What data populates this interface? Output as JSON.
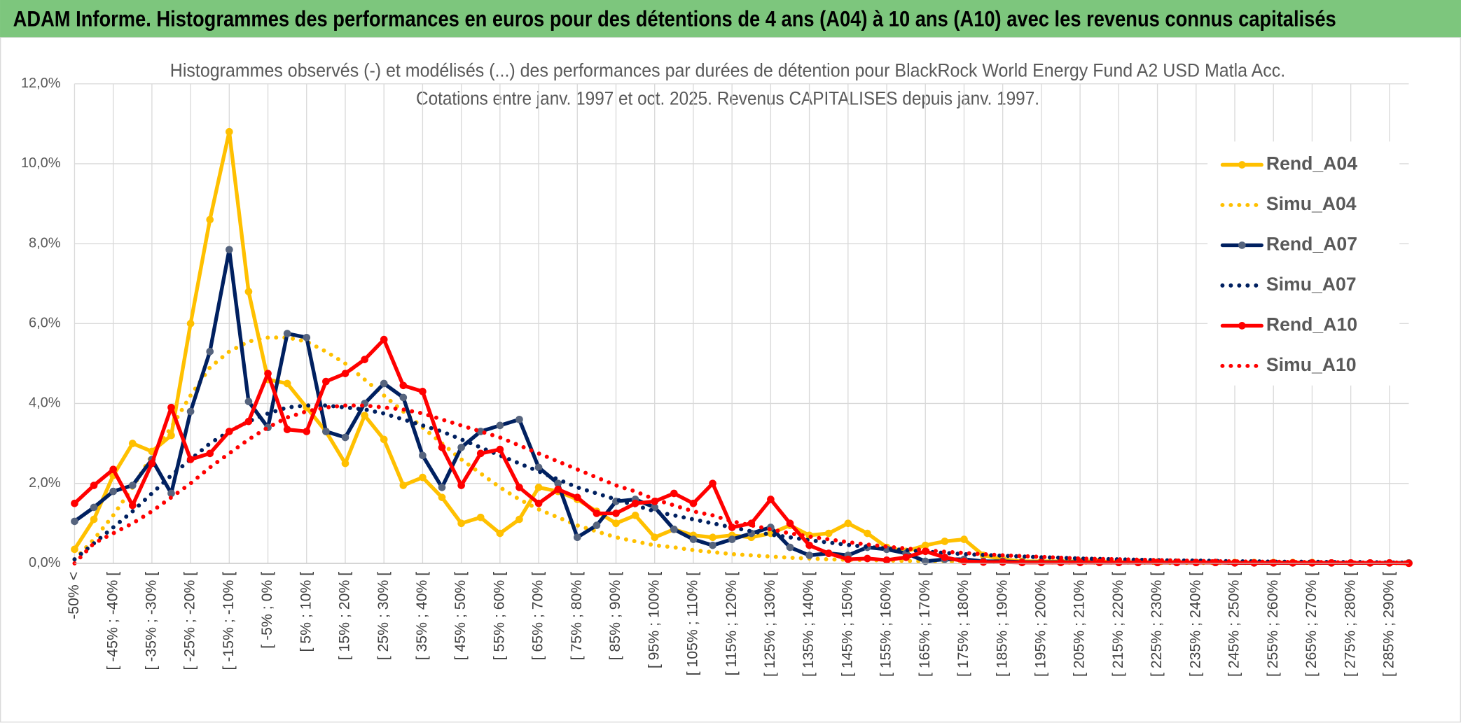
{
  "header": {
    "title": "ADAM Informe. Histogrammes des performances en euros pour des détentions de 4 ans (A04) à 10 ans (A10) avec les revenus connus capitalisés"
  },
  "chart_data": {
    "type": "line",
    "title": "Histogrammes observés (-) et modélisés (...) des performances par durées de détention pour BlackRock World Energy Fund A2 USD Matla Acc.",
    "subtitle": "Cotations entre janv. 1997 et oct. 2025. Revenus CAPITALISES depuis janv. 1997.",
    "categories": [
      "-50% <",
      null,
      "[ -45% ; -40% [",
      null,
      "[ -35% ; -30% [",
      null,
      "[ -25% ; -20% [",
      null,
      "[ -15% ; -10% [",
      null,
      "[ -5% ; 0% [",
      null,
      "[ 5% ; 10% [",
      null,
      "[ 15% ; 20% [",
      null,
      "[ 25% ; 30% [",
      null,
      "[ 35% ; 40% [",
      null,
      "[ 45% ; 50% [",
      null,
      "[ 55% ; 60% [",
      null,
      "[ 65% ; 70% [",
      null,
      "[ 75% ; 80% [",
      null,
      "[ 85% ; 90% [",
      null,
      "[ 95% ; 100% [",
      null,
      "[ 105% ; 110% [",
      null,
      "[ 115% ; 120% [",
      null,
      "[ 125% ; 130% [",
      null,
      "[ 135% ; 140% [",
      null,
      "[ 145% ; 150% [",
      null,
      "[ 155% ; 160% [",
      null,
      "[ 165% ; 170% [",
      null,
      "[ 175% ; 180% [",
      null,
      "[ 185% ; 190% [",
      null,
      "[ 195% ; 200% [",
      null,
      "[ 205% ; 210% [",
      null,
      "[ 215% ; 220% [",
      null,
      "[ 225% ; 230% [",
      null,
      "[ 235% ; 240% [",
      null,
      "[ 245% ; 250% [",
      null,
      "[ 255% ; 260% [",
      null,
      "[ 265% ; 270% [",
      null,
      "[ 275% ; 280% [",
      null,
      "[ 285% ; 290% [",
      null
    ],
    "ylim": [
      0,
      12
    ],
    "yticks": [
      {
        "value": 0,
        "label": "0,0%"
      },
      {
        "value": 2,
        "label": "2,0%"
      },
      {
        "value": 4,
        "label": "4,0%"
      },
      {
        "value": 6,
        "label": "6,0%"
      },
      {
        "value": 8,
        "label": "8,0%"
      },
      {
        "value": 10,
        "label": "10,0%"
      },
      {
        "value": 12,
        "label": "12,0%"
      }
    ],
    "grid": true,
    "legend": "right",
    "series": [
      {
        "name": "Rend_A04",
        "color": "#ffc000",
        "marker_color": "#ffc000",
        "style": "solid",
        "values": [
          0.35,
          1.1,
          2.2,
          3.0,
          2.8,
          3.2,
          6.0,
          8.6,
          10.8,
          6.8,
          4.6,
          4.5,
          3.9,
          3.3,
          2.5,
          3.7,
          3.1,
          1.95,
          2.15,
          1.65,
          1.0,
          1.15,
          0.75,
          1.1,
          1.9,
          1.8,
          1.6,
          1.3,
          1.0,
          1.2,
          0.65,
          0.85,
          0.7,
          0.65,
          0.7,
          0.65,
          0.75,
          0.95,
          0.7,
          0.75,
          1.0,
          0.75,
          0.4,
          0.3,
          0.45,
          0.55,
          0.6,
          0.2,
          0.1,
          0.05,
          0.05,
          0.05,
          0.05,
          0.05,
          0.03,
          0.03,
          0.03,
          0.03,
          0.02,
          0.02,
          0.02,
          0.02,
          0.02,
          0.02,
          0.02,
          0.01,
          0.01,
          0.01,
          0.01,
          0.01
        ]
      },
      {
        "name": "Simu_A04",
        "color": "#ffc000",
        "style": "dotted",
        "values": [
          0.1,
          0.6,
          1.2,
          1.9,
          2.7,
          3.4,
          4.2,
          4.9,
          5.3,
          5.55,
          5.65,
          5.65,
          5.55,
          5.3,
          5.0,
          4.6,
          4.2,
          3.8,
          3.4,
          3.0,
          2.6,
          2.25,
          1.9,
          1.6,
          1.35,
          1.15,
          0.95,
          0.8,
          0.65,
          0.55,
          0.45,
          0.4,
          0.33,
          0.28,
          0.23,
          0.2,
          0.17,
          0.14,
          0.12,
          0.1,
          0.09,
          0.08,
          0.07,
          0.06,
          0.05,
          0.05,
          0.04,
          0.04,
          0.03,
          0.03,
          0.03,
          0.02,
          0.02,
          0.02,
          0.02,
          0.02,
          0.01,
          0.01,
          0.01,
          0.01,
          0.01,
          0.01,
          0.01,
          0.01,
          0.01,
          0.01,
          0.01,
          0.01,
          0.01,
          0.0
        ]
      },
      {
        "name": "Rend_A07",
        "color": "#002060",
        "marker_color": "#56647e",
        "style": "solid",
        "values": [
          1.05,
          1.4,
          1.8,
          1.95,
          2.6,
          1.75,
          3.8,
          5.3,
          7.85,
          4.05,
          3.4,
          5.75,
          5.65,
          3.3,
          3.15,
          4.0,
          4.5,
          4.15,
          2.7,
          1.9,
          2.9,
          3.3,
          3.45,
          3.6,
          2.4,
          2.0,
          0.65,
          0.95,
          1.55,
          1.6,
          1.4,
          0.85,
          0.6,
          0.45,
          0.6,
          0.75,
          0.9,
          0.4,
          0.2,
          0.25,
          0.2,
          0.4,
          0.35,
          0.25,
          0.05,
          0.1,
          0.1,
          0.05,
          0.05,
          0.03,
          0.03,
          0.03,
          0.03,
          0.02,
          0.02,
          0.02,
          0.02,
          0.02,
          0.02,
          0.02,
          0.01,
          0.01,
          0.01,
          0.01,
          0.01,
          0.01,
          0.01,
          0.01,
          0.01,
          0.01
        ]
      },
      {
        "name": "Simu_A07",
        "color": "#002060",
        "style": "dotted",
        "values": [
          0.1,
          0.5,
          0.9,
          1.3,
          1.75,
          2.2,
          2.6,
          3.0,
          3.3,
          3.55,
          3.75,
          3.9,
          3.95,
          3.95,
          3.9,
          3.85,
          3.75,
          3.6,
          3.45,
          3.3,
          3.1,
          2.9,
          2.7,
          2.5,
          2.3,
          2.1,
          1.9,
          1.75,
          1.6,
          1.45,
          1.3,
          1.2,
          1.1,
          1.0,
          0.9,
          0.8,
          0.72,
          0.65,
          0.58,
          0.52,
          0.46,
          0.41,
          0.37,
          0.33,
          0.29,
          0.26,
          0.23,
          0.21,
          0.19,
          0.17,
          0.15,
          0.14,
          0.12,
          0.11,
          0.1,
          0.09,
          0.08,
          0.07,
          0.07,
          0.06,
          0.05,
          0.05,
          0.04,
          0.04,
          0.04,
          0.03,
          0.03,
          0.03,
          0.02,
          0.02
        ]
      },
      {
        "name": "Rend_A10",
        "color": "#ff0000",
        "marker_color": "#ff0000",
        "style": "solid",
        "values": [
          1.5,
          1.95,
          2.35,
          1.45,
          2.5,
          3.9,
          2.6,
          2.75,
          3.3,
          3.55,
          4.75,
          3.35,
          3.3,
          4.55,
          4.75,
          5.1,
          5.6,
          4.45,
          4.3,
          2.9,
          1.95,
          2.75,
          2.85,
          1.9,
          1.5,
          1.85,
          1.65,
          1.25,
          1.25,
          1.5,
          1.55,
          1.75,
          1.5,
          2.0,
          0.9,
          1.0,
          1.6,
          1.0,
          0.45,
          0.25,
          0.1,
          0.12,
          0.08,
          0.15,
          0.3,
          0.15,
          0.05,
          0.03,
          0.03,
          0.02,
          0.02,
          0.02,
          0.02,
          0.02,
          0.02,
          0.02,
          0.02,
          0.02,
          0.02,
          0.02,
          0.01,
          0.01,
          0.01,
          0.01,
          0.01,
          0.01,
          0.01,
          0.01,
          0.01,
          0.0
        ]
      },
      {
        "name": "Simu_A10",
        "color": "#ff0000",
        "style": "dotted",
        "values": [
          0.0,
          0.5,
          0.75,
          1.0,
          1.3,
          1.65,
          2.0,
          2.4,
          2.75,
          3.1,
          3.4,
          3.65,
          3.8,
          3.9,
          3.95,
          3.95,
          3.9,
          3.85,
          3.75,
          3.6,
          3.45,
          3.3,
          3.15,
          2.95,
          2.75,
          2.55,
          2.35,
          2.15,
          1.95,
          1.8,
          1.6,
          1.45,
          1.3,
          1.2,
          1.05,
          0.95,
          0.85,
          0.75,
          0.67,
          0.6,
          0.53,
          0.47,
          0.42,
          0.37,
          0.33,
          0.29,
          0.26,
          0.23,
          0.2,
          0.18,
          0.16,
          0.14,
          0.12,
          0.11,
          0.1,
          0.09,
          0.08,
          0.07,
          0.06,
          0.05,
          0.05,
          0.04,
          0.04,
          0.03,
          0.03,
          0.03,
          0.02,
          0.02,
          0.02,
          0.02
        ]
      }
    ]
  }
}
